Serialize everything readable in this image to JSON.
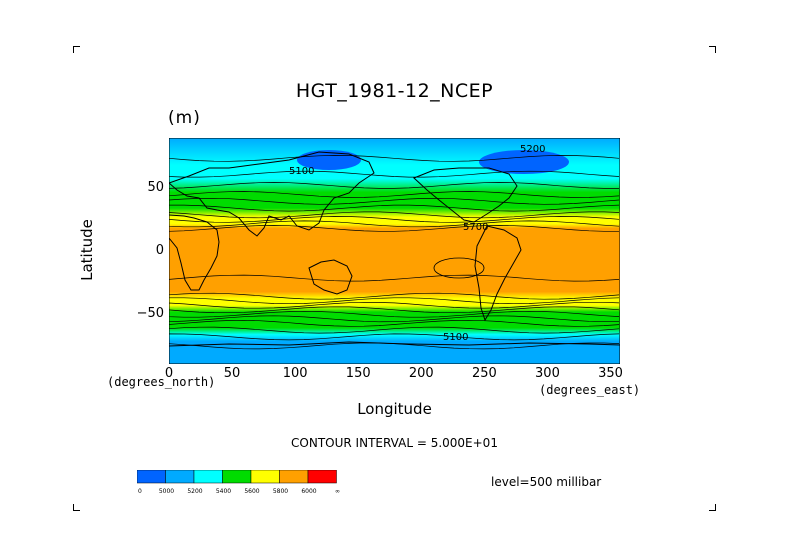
{
  "chart_data": {
    "type": "heatmap",
    "title": "HGT_1981-12_NCEP",
    "units": "(m)",
    "xlabel": "Longitude",
    "ylabel": "Latitude",
    "x_unit_label": "(degrees_east)",
    "y_unit_label": "(degrees_north)",
    "x_ticks": [
      0,
      50,
      100,
      150,
      200,
      250,
      300,
      350
    ],
    "y_ticks": [
      -50,
      0,
      50
    ],
    "xlim": [
      0,
      357.5
    ],
    "ylim": [
      -90,
      90
    ],
    "contour_interval_text": "CONTOUR INTERVAL = 5.000E+01",
    "level_text": "level=500 millibar",
    "contour_labels": [
      "5100",
      "5200",
      "5700",
      "5100"
    ],
    "colorbar": {
      "labels": [
        "0",
        "5000",
        "5200",
        "5400",
        "5600",
        "5800",
        "6000",
        "∞"
      ],
      "colors": [
        "#0064ff",
        "#00aaff",
        "#00ffff",
        "#00dc00",
        "#ffff00",
        "#ffa000",
        "#ff0000"
      ]
    }
  }
}
